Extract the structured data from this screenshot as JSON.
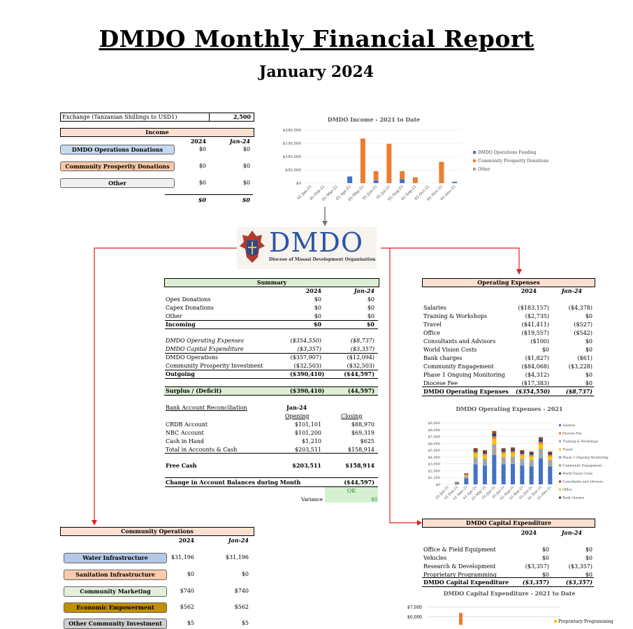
{
  "title": "DMDO Monthly Financial Report",
  "subtitle": "January 2024",
  "exchange": {
    "label": "Exchange (Tanzanian Shillings to USD1)",
    "value": "2,500"
  },
  "income": {
    "header": "Income",
    "col1": "2024",
    "col2": "Jan-24",
    "rows": [
      {
        "label": "DMDO Operations Donations",
        "v1": "$0",
        "v2": "$0",
        "color": "#c6d9f1"
      },
      {
        "label": "Community Prosperity Donations",
        "v1": "$0",
        "v2": "$0",
        "color": "#f8c8a8"
      },
      {
        "label": "Other",
        "v1": "$0",
        "v2": "$0",
        "color": "#f0f0f0"
      }
    ],
    "total1": "$0",
    "total2": "$0"
  },
  "income_chart": {
    "chart_data": {
      "type": "bar",
      "title": "DMDO Income - 2021 to Date",
      "categories": [
        "01-Jan-21",
        "01-Feb-21",
        "01-Mar-21",
        "01-Apr-21",
        "01-May-21",
        "01-Jun-21",
        "01-Jul-21",
        "01-Aug-21",
        "01-Sep-21",
        "01-Oct-21",
        "01-Nov-21",
        "01-Dec-21"
      ],
      "yticks": [
        "$200,000",
        "$150,000",
        "$100,000",
        "$50,000",
        "$0"
      ],
      "ylim": [
        0,
        200000
      ],
      "series": [
        {
          "name": "DMDO Operations Funding",
          "color": "#4472c4",
          "values": [
            0,
            0,
            0,
            25000,
            0,
            10000,
            0,
            15000,
            0,
            0,
            0,
            5000
          ]
        },
        {
          "name": "Community Prosperity Donations",
          "color": "#ed7d31",
          "values": [
            0,
            0,
            0,
            0,
            168000,
            35000,
            148000,
            30000,
            22000,
            0,
            80000,
            0
          ]
        },
        {
          "name": "Other",
          "color": "#a5a5a5",
          "values": [
            0,
            0,
            0,
            0,
            0,
            0,
            0,
            0,
            0,
            0,
            0,
            0
          ]
        }
      ],
      "legend": "right"
    }
  },
  "logo": {
    "text": "DMDO",
    "sub": "Diocese of Masasi Development Organisation"
  },
  "summary": {
    "header": "Summary",
    "col1": "2024",
    "col2": "Jan-24",
    "rows": [
      {
        "label": "Opex Donations",
        "v1": "$0",
        "v2": "$0"
      },
      {
        "label": "Capex Donations",
        "v1": "$0",
        "v2": "$0"
      },
      {
        "label": "Other",
        "v1": "$0",
        "v2": "$0"
      },
      {
        "label": "Incoming",
        "v1": "$0",
        "v2": "$0"
      },
      {
        "label": "DMDO Operating Expenses",
        "v1": "($354,550)",
        "v2": "($8,737)"
      },
      {
        "label": "DMDO Capital Expenditure",
        "v1": "($3,357)",
        "v2": "($3,357)"
      },
      {
        "label": "DMDO Operations",
        "v1": "($357,907)",
        "v2": "($12,094)"
      },
      {
        "label": "Community Prosperity Investment",
        "v1": "($32,503)",
        "v2": "($32,503)"
      },
      {
        "label": "Outgoing",
        "v1": "($390,410)",
        "v2": "($44,597)"
      }
    ],
    "surplus": {
      "label": "Surplus /  (Deficit)",
      "v1": "($390,410)",
      "v2": "(44,597)"
    },
    "bank": {
      "label": "Bank Account Reconciliation",
      "month": "Jan-24",
      "open": "Opening",
      "close": "Closing",
      "rows": [
        {
          "label": "CRDB Account",
          "v1": "$101,101",
          "v2": "$88,970"
        },
        {
          "label": "NBC Account",
          "v1": "$101,200",
          "v2": "$69,319"
        },
        {
          "label": "Cash in Hand",
          "v1": "$1,210",
          "v2": "$625"
        },
        {
          "label": "Total in Accounts & Cash",
          "v1": "$203,511",
          "v2": "$158,914"
        }
      ]
    },
    "free_cash": {
      "label": "Free Cash",
      "v1": "$203,511",
      "v2": "$158,914"
    },
    "change": {
      "label": "Change in Account Balances during Month",
      "v2": "($44,597)"
    },
    "ok": "OK",
    "variance": {
      "label": "Variance",
      "value": "$0"
    }
  },
  "opex": {
    "header": "Operating Expenses",
    "col1": "2024",
    "col2": "Jan-24",
    "rows": [
      {
        "label": "Salaries",
        "v1": "($183,157)",
        "v2": "($4,378)"
      },
      {
        "label": "Training & Workshops",
        "v1": "($2,735)",
        "v2": "$0"
      },
      {
        "label": "Travel",
        "v1": "($41,411)",
        "v2": "($527)"
      },
      {
        "label": "Office",
        "v1": "($19,557)",
        "v2": "($542)"
      },
      {
        "label": "Consultants and Advisors",
        "v1": "($100)",
        "v2": "$0"
      },
      {
        "label": "World Vision Costs",
        "v1": "$0",
        "v2": "$0"
      },
      {
        "label": "Bank charges",
        "v1": "($1,827)",
        "v2": "($61)"
      },
      {
        "label": "Community Engagement",
        "v1": "($84,068)",
        "v2": "($3,228)"
      },
      {
        "label": "Phase 1 Ongoing Monitoring",
        "v1": "($4,312)",
        "v2": "$0"
      },
      {
        "label": "Diocese Fee",
        "v1": "($17,383)",
        "v2": "$0"
      }
    ],
    "total": {
      "label": "DMDO Operating Expenses",
      "v1": "($354,550)",
      "v2": "($8,737)"
    }
  },
  "opex_chart": {
    "chart_data": {
      "type": "bar",
      "title": "DMDO Operating Expenses - 2021",
      "categories": [
        "01-Jan-21",
        "01-Feb-21",
        "01-Mar-21",
        "01-Apr-21",
        "01-May-21",
        "01-Jun-21",
        "01-Jul-21",
        "01-Aug-21",
        "01-Sep-21",
        "01-Oct-21",
        "01-Nov-21",
        "01-Dec-21"
      ],
      "yticks": [
        "$9,000",
        "$8,000",
        "$7,000",
        "$6,000",
        "$5,000",
        "$4,000",
        "$3,000",
        "$2,000",
        "$1,200",
        "$0"
      ],
      "ylim": [
        0,
        9000
      ],
      "stack_colors": [
        "#4472c4",
        "#a5a5a5",
        "#ffc000",
        "#ed7d31",
        "#264478",
        "#9e480e"
      ],
      "totals": [
        0,
        400,
        1600,
        5300,
        5000,
        7800,
        5300,
        5400,
        5000,
        4800,
        6900,
        4800
      ],
      "legend_items": [
        "Salaries",
        "Diocese Fee",
        "Training & Workshops",
        "Travel",
        "Phase 1 Ongoing Monitoring",
        "Community Engagement",
        "World Vision Costs",
        "Consultants and Advisors",
        "Office",
        "Bank charges"
      ],
      "legend_colors": [
        "#4472c4",
        "#ed7d31",
        "#a5a5a5",
        "#ffc000",
        "#5b9bd5",
        "#70ad47",
        "#264478",
        "#9e480e",
        "#ffc000",
        "#264478"
      ],
      "legend": "right"
    }
  },
  "capex": {
    "header": "DMDO Capital Expenditure",
    "col1": "2024",
    "col2": "Jan-24",
    "rows": [
      {
        "label": "Office & Field Equipment",
        "v1": "$0",
        "v2": "$0"
      },
      {
        "label": "Vehicles",
        "v1": "$0",
        "v2": "$0"
      },
      {
        "label": "Research & Development",
        "v1": "($3,357)",
        "v2": "($3,357)"
      },
      {
        "label": "Proprietary Programming",
        "v1": "$0",
        "v2": "$0"
      }
    ],
    "total": {
      "label": "DMDO Capital Expenditure",
      "v1": "($3,357)",
      "v2": "($3,357)"
    }
  },
  "capex_chart": {
    "title": "DMDO Capital Expenditure - 2021 to Date",
    "yticks": [
      "$7,000",
      "$6,000"
    ],
    "legend": "Proprietary Programming"
  },
  "community": {
    "header": "Community Operations",
    "col1": "2024",
    "col2": "Jan-24",
    "rows": [
      {
        "label": "Water Infrastructure",
        "v1": "$31,196",
        "v2": "$31,196",
        "color": "#b4c7e7"
      },
      {
        "label": "Sanitation Infrastructure",
        "v1": "$0",
        "v2": "$0",
        "color": "#f8cbad"
      },
      {
        "label": "Community Marketing",
        "v1": "$740",
        "v2": "$740",
        "color": "#e2efda"
      },
      {
        "label": "Economic Empowerment",
        "v1": "$562",
        "v2": "$562",
        "color": "#bf9000"
      },
      {
        "label": "Other Community Investment",
        "v1": "$5",
        "v2": "$5",
        "color": "#d0cece"
      }
    ]
  }
}
